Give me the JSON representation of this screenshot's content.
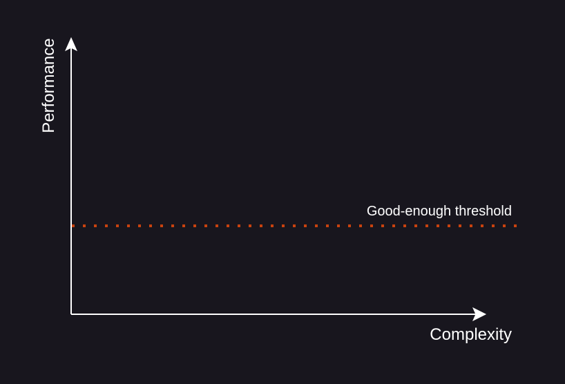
{
  "diagram": {
    "x_axis_label": "Complexity",
    "y_axis_label": "Performance",
    "threshold_label": "Good-enough threshold"
  },
  "colors": {
    "background": "#18161e",
    "axis": "#ffffff",
    "threshold": "#c8420f"
  }
}
